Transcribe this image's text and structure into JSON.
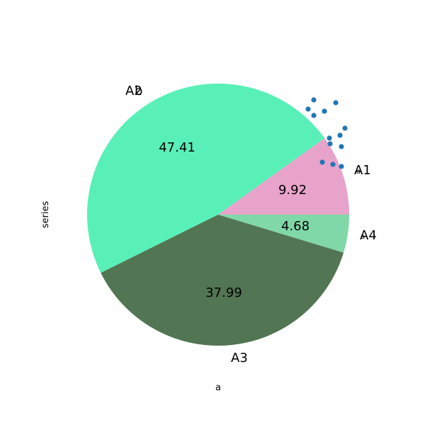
{
  "chart_data": {
    "type": "pie",
    "xlabel": "a",
    "ylabel": "series",
    "categories": [
      "A1",
      "A2",
      "A3",
      "A4"
    ],
    "values": [
      9.92,
      47.41,
      37.99,
      4.68
    ],
    "value_labels": [
      "9.92",
      "47.41",
      "37.99",
      "4.68"
    ],
    "colors": [
      "#e8a3cb",
      "#59f0b8",
      "#527553",
      "#80d8a8"
    ],
    "start_angle_deg": 0,
    "direction": "counterclockwise",
    "overlay_labels": [
      "b",
      "a",
      "a"
    ],
    "overlay_points": {
      "color": "#1f77b4",
      "count": 13
    }
  }
}
